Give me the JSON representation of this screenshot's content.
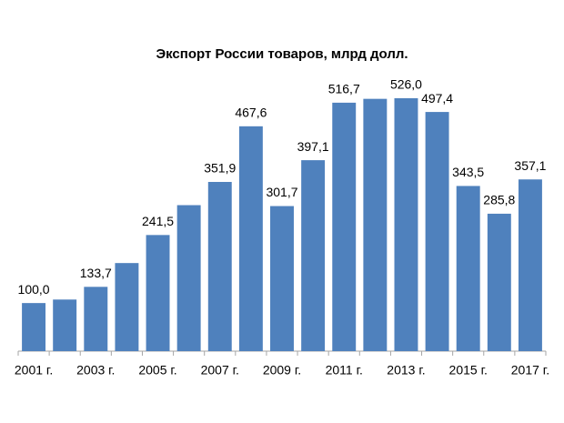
{
  "chart_data": {
    "type": "bar",
    "title": "Экспорт России товаров, млрд долл.",
    "categories": [
      "2001 г.",
      null,
      "2003 г.",
      null,
      "2005 г.",
      null,
      "2007 г.",
      null,
      "2009 г.",
      null,
      "2011 г.",
      null,
      "2013 г.",
      null,
      "2015 г.",
      null,
      "2017 г."
    ],
    "values": [
      100.0,
      107.3,
      133.7,
      183.2,
      241.5,
      303.6,
      351.9,
      467.6,
      301.7,
      397.1,
      516.7,
      524.7,
      526.0,
      497.4,
      343.5,
      285.8,
      357.1
    ],
    "value_labels": [
      "100,0",
      null,
      "133,7",
      null,
      "241,5",
      null,
      "351,9",
      "467,6",
      "301,7",
      "397,1",
      "516,7",
      null,
      "526,0",
      "497,4",
      "343,5",
      "285,8",
      "357,1"
    ],
    "color": "#4f81bd",
    "ylim": [
      0,
      560
    ]
  }
}
